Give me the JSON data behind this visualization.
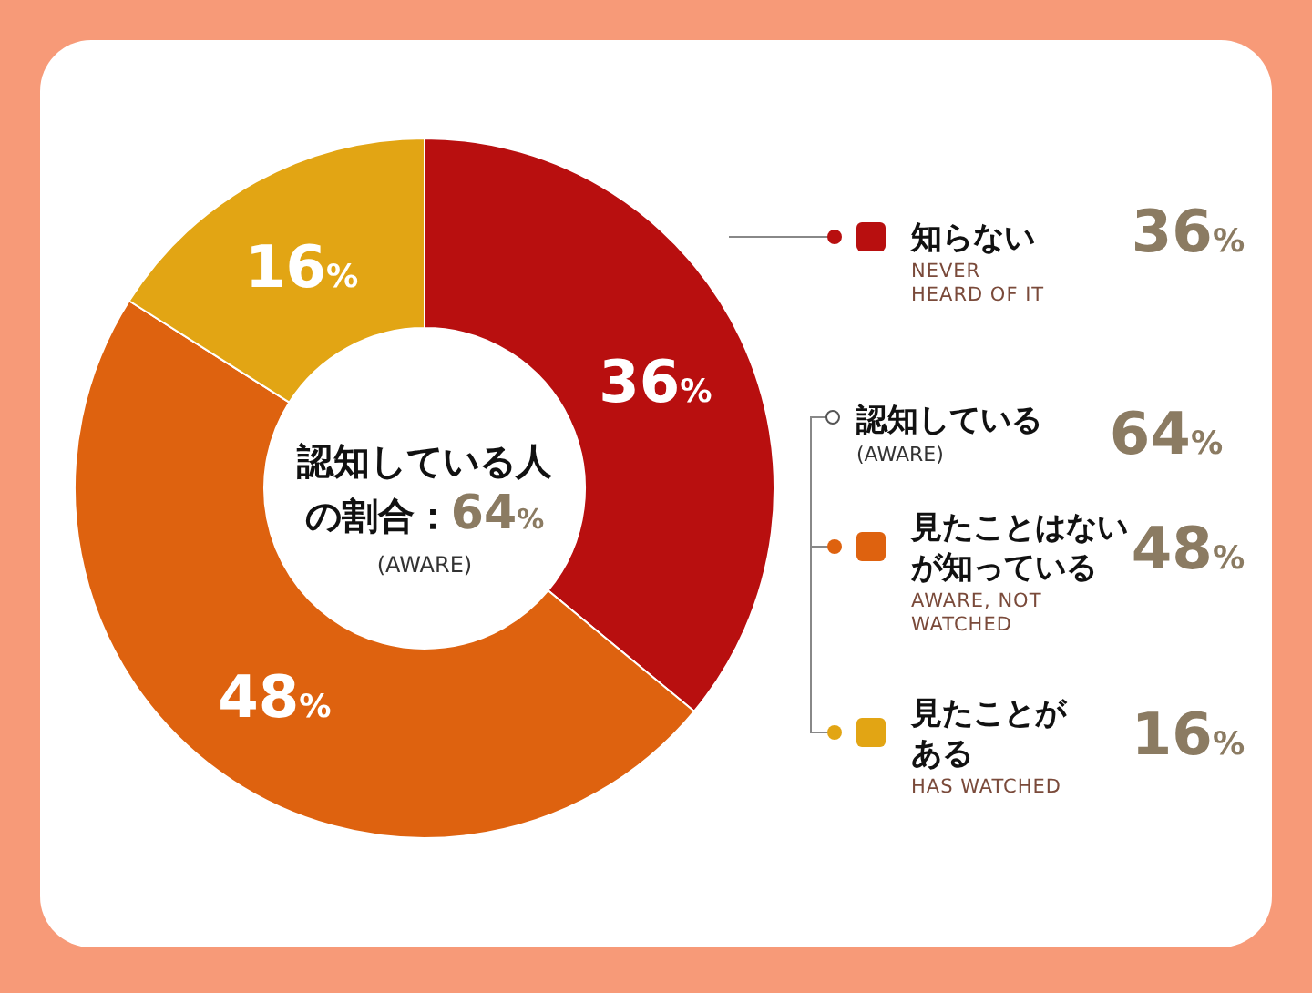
{
  "chart_data": {
    "type": "donut",
    "categories": [
      "知らない",
      "見たことはないが知っている",
      "見たことがある"
    ],
    "values": [
      36,
      48,
      16
    ],
    "colors": [
      "#b80f0f",
      "#de620f",
      "#e2a514"
    ],
    "value_labels": [
      "36%",
      "48%",
      "16%"
    ],
    "legend": "right",
    "annotations": [
      "認知している人の割合：64%",
      "(AWARE)",
      "NEVER\nHEARD OF IT",
      "認知している",
      "(AWARE)",
      "64%",
      "AWARE, NOT\nWATCHED",
      "HAS WATCHED"
    ]
  }
}
